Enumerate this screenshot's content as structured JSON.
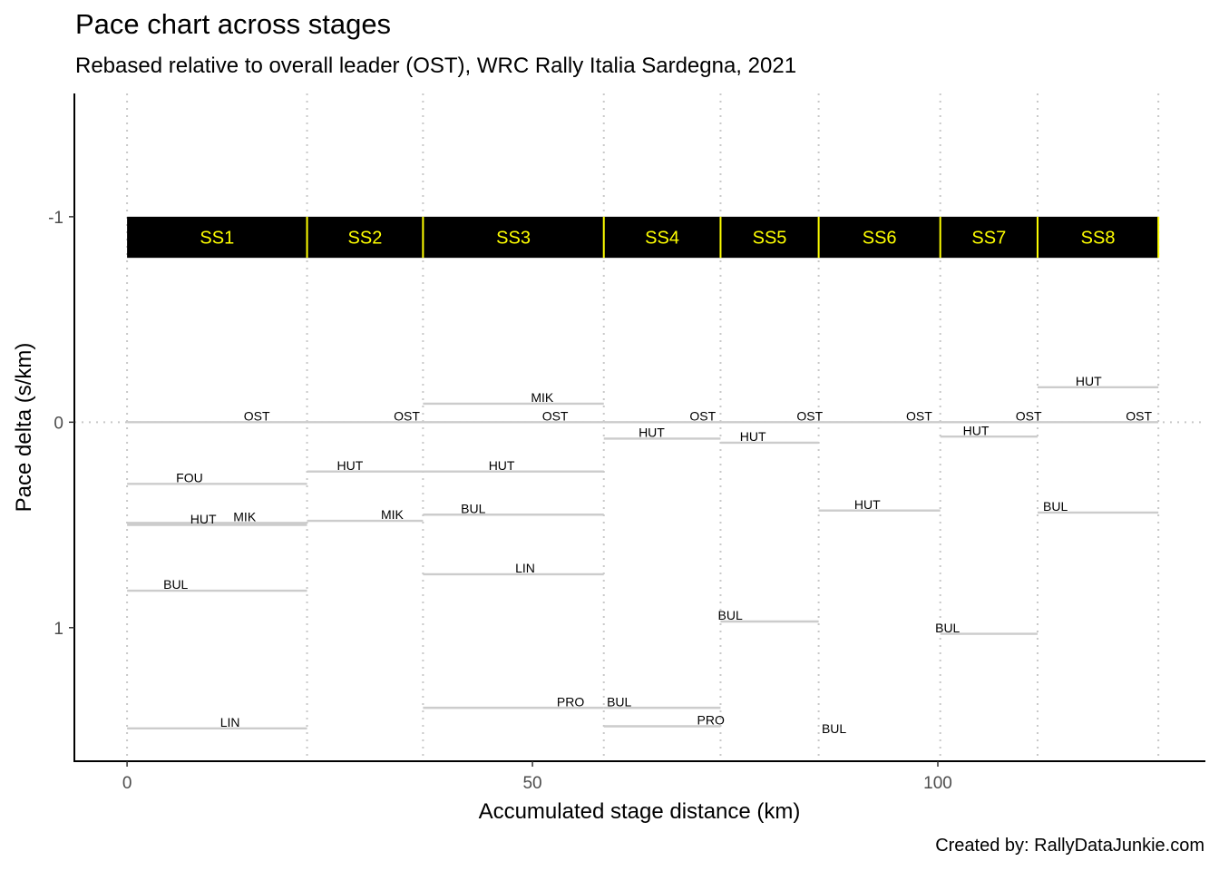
{
  "title": "Pace chart across stages",
  "subtitle": "Rebased relative to overall leader (OST), WRC Rally Italia Sardegna, 2021",
  "caption": "Created by: RallyDataJunkie.com",
  "chart_data": {
    "type": "line",
    "xlabel": "Accumulated stage distance (km)",
    "ylabel": "Pace delta (s/km)",
    "xlim": [
      -6.5,
      133
    ],
    "ylim": [
      1.65,
      -1.6
    ],
    "y_reversed": true,
    "xticks": [
      0,
      50,
      100
    ],
    "yticks": [
      -1,
      0,
      1
    ],
    "stage_boundaries": [
      0,
      22.2,
      36.5,
      58.8,
      73.2,
      85.3,
      100.3,
      112.3,
      127.2
    ],
    "stages": [
      {
        "label": "SS1",
        "start": 0,
        "end": 22.2
      },
      {
        "label": "SS2",
        "start": 22.2,
        "end": 36.5
      },
      {
        "label": "SS3",
        "start": 36.5,
        "end": 58.8
      },
      {
        "label": "SS4",
        "start": 58.8,
        "end": 73.2
      },
      {
        "label": "SS5",
        "start": 73.2,
        "end": 85.3
      },
      {
        "label": "SS6",
        "start": 85.3,
        "end": 100.3
      },
      {
        "label": "SS7",
        "start": 100.3,
        "end": 112.3
      },
      {
        "label": "SS8",
        "start": 112.3,
        "end": 127.2
      }
    ],
    "stage_band": {
      "y_top": -1.0,
      "y_bottom": -0.8,
      "fill": "#000000",
      "text_color": "#ffff00"
    },
    "line_color": "#cccccc",
    "segments": [
      {
        "stage": "SS1",
        "x0": 0,
        "x1": 22.2,
        "y": 0,
        "label": "OST",
        "lx": 16,
        "ly": -0.03
      },
      {
        "stage": "SS1",
        "x0": 0,
        "x1": 22.2,
        "y": 0.3,
        "label": "FOU",
        "lx": 7.7,
        "ly": 0.27
      },
      {
        "stage": "SS1",
        "x0": 0,
        "x1": 22.2,
        "y": 0.49,
        "label": "MIK",
        "lx": 14.5,
        "ly": 0.46
      },
      {
        "stage": "SS1",
        "x0": 0,
        "x1": 22.2,
        "y": 0.5,
        "label": "HUT",
        "lx": 9.4,
        "ly": 0.47
      },
      {
        "stage": "SS1",
        "x0": 0,
        "x1": 22.2,
        "y": 0.82,
        "label": "BUL",
        "lx": 6,
        "ly": 0.79
      },
      {
        "stage": "SS1",
        "x0": 0,
        "x1": 22.2,
        "y": 1.49,
        "label": "LIN",
        "lx": 12.7,
        "ly": 1.46
      },
      {
        "stage": "SS2",
        "x0": 22.2,
        "x1": 36.5,
        "y": 0,
        "label": "OST",
        "lx": 34.5,
        "ly": -0.03
      },
      {
        "stage": "SS2",
        "x0": 22.2,
        "x1": 36.5,
        "y": 0.24,
        "label": "HUT",
        "lx": 27.5,
        "ly": 0.21
      },
      {
        "stage": "SS2",
        "x0": 22.2,
        "x1": 36.5,
        "y": 0.48,
        "label": "MIK",
        "lx": 32.7,
        "ly": 0.45
      },
      {
        "stage": "SS3",
        "x0": 36.5,
        "x1": 58.8,
        "y": -0.09,
        "label": "MIK",
        "lx": 51.2,
        "ly": -0.12
      },
      {
        "stage": "SS3",
        "x0": 36.5,
        "x1": 58.8,
        "y": 0,
        "label": "OST",
        "lx": 52.8,
        "ly": -0.03
      },
      {
        "stage": "SS3",
        "x0": 36.5,
        "x1": 58.8,
        "y": 0.24,
        "label": "HUT",
        "lx": 46.2,
        "ly": 0.21
      },
      {
        "stage": "SS3",
        "x0": 36.5,
        "x1": 58.8,
        "y": 0.45,
        "label": "BUL",
        "lx": 42.7,
        "ly": 0.42
      },
      {
        "stage": "SS3",
        "x0": 36.5,
        "x1": 58.8,
        "y": 0.74,
        "label": "LIN",
        "lx": 49.1,
        "ly": 0.71
      },
      {
        "stage": "SS3",
        "x0": 36.5,
        "x1": 58.8,
        "y": 1.39,
        "label": "PRO",
        "lx": 54.7,
        "ly": 1.36
      },
      {
        "stage": "SS4",
        "x0": 58.8,
        "x1": 73.2,
        "y": 0,
        "label": "OST",
        "lx": 71,
        "ly": -0.03
      },
      {
        "stage": "SS4",
        "x0": 58.8,
        "x1": 73.2,
        "y": 0.08,
        "label": "HUT",
        "lx": 64.7,
        "ly": 0.05
      },
      {
        "stage": "SS4",
        "x0": 58.8,
        "x1": 73.2,
        "y": 1.39,
        "label": "BUL",
        "lx": 60.7,
        "ly": 1.36
      },
      {
        "stage": "SS4",
        "x0": 58.8,
        "x1": 73.2,
        "y": 1.48,
        "label": "PRO",
        "lx": 72,
        "ly": 1.45
      },
      {
        "stage": "SS5",
        "x0": 73.2,
        "x1": 85.3,
        "y": 0,
        "label": "OST",
        "lx": 84.2,
        "ly": -0.03
      },
      {
        "stage": "SS5",
        "x0": 73.2,
        "x1": 85.3,
        "y": 0.1,
        "label": "HUT",
        "lx": 77.2,
        "ly": 0.07
      },
      {
        "stage": "SS5",
        "x0": 73.2,
        "x1": 85.3,
        "y": 0.97,
        "label": "BUL",
        "lx": 74.4,
        "ly": 0.94
      },
      {
        "stage": "SS6",
        "x0": 85.3,
        "x1": 100.3,
        "y": 0,
        "label": "OST",
        "lx": 97.7,
        "ly": -0.03
      },
      {
        "stage": "SS6",
        "x0": 85.3,
        "x1": 100.3,
        "y": 0.43,
        "label": "HUT",
        "lx": 91.3,
        "ly": 0.4
      },
      {
        "stage": "SS6",
        "label": "BUL",
        "lx": 87.2,
        "ly": 1.49
      },
      {
        "stage": "SS7",
        "x0": 100.3,
        "x1": 112.3,
        "y": 0,
        "label": "OST",
        "lx": 111.2,
        "ly": -0.03
      },
      {
        "stage": "SS7",
        "x0": 100.3,
        "x1": 112.3,
        "y": 0.07,
        "label": "HUT",
        "lx": 104.7,
        "ly": 0.04
      },
      {
        "stage": "SS7",
        "x0": 100.3,
        "x1": 112.3,
        "y": 1.03,
        "label": "BUL",
        "lx": 101.2,
        "ly": 1
      },
      {
        "stage": "SS8",
        "x0": 112.3,
        "x1": 127.2,
        "y": 0,
        "label": "OST",
        "lx": 124.8,
        "ly": -0.03
      },
      {
        "stage": "SS8",
        "x0": 112.3,
        "x1": 127.2,
        "y": -0.17,
        "label": "HUT",
        "lx": 118.6,
        "ly": -0.2
      },
      {
        "stage": "SS8",
        "x0": 112.3,
        "x1": 127.2,
        "y": 0.44,
        "label": "BUL",
        "lx": 114.5,
        "ly": 0.41
      }
    ]
  }
}
